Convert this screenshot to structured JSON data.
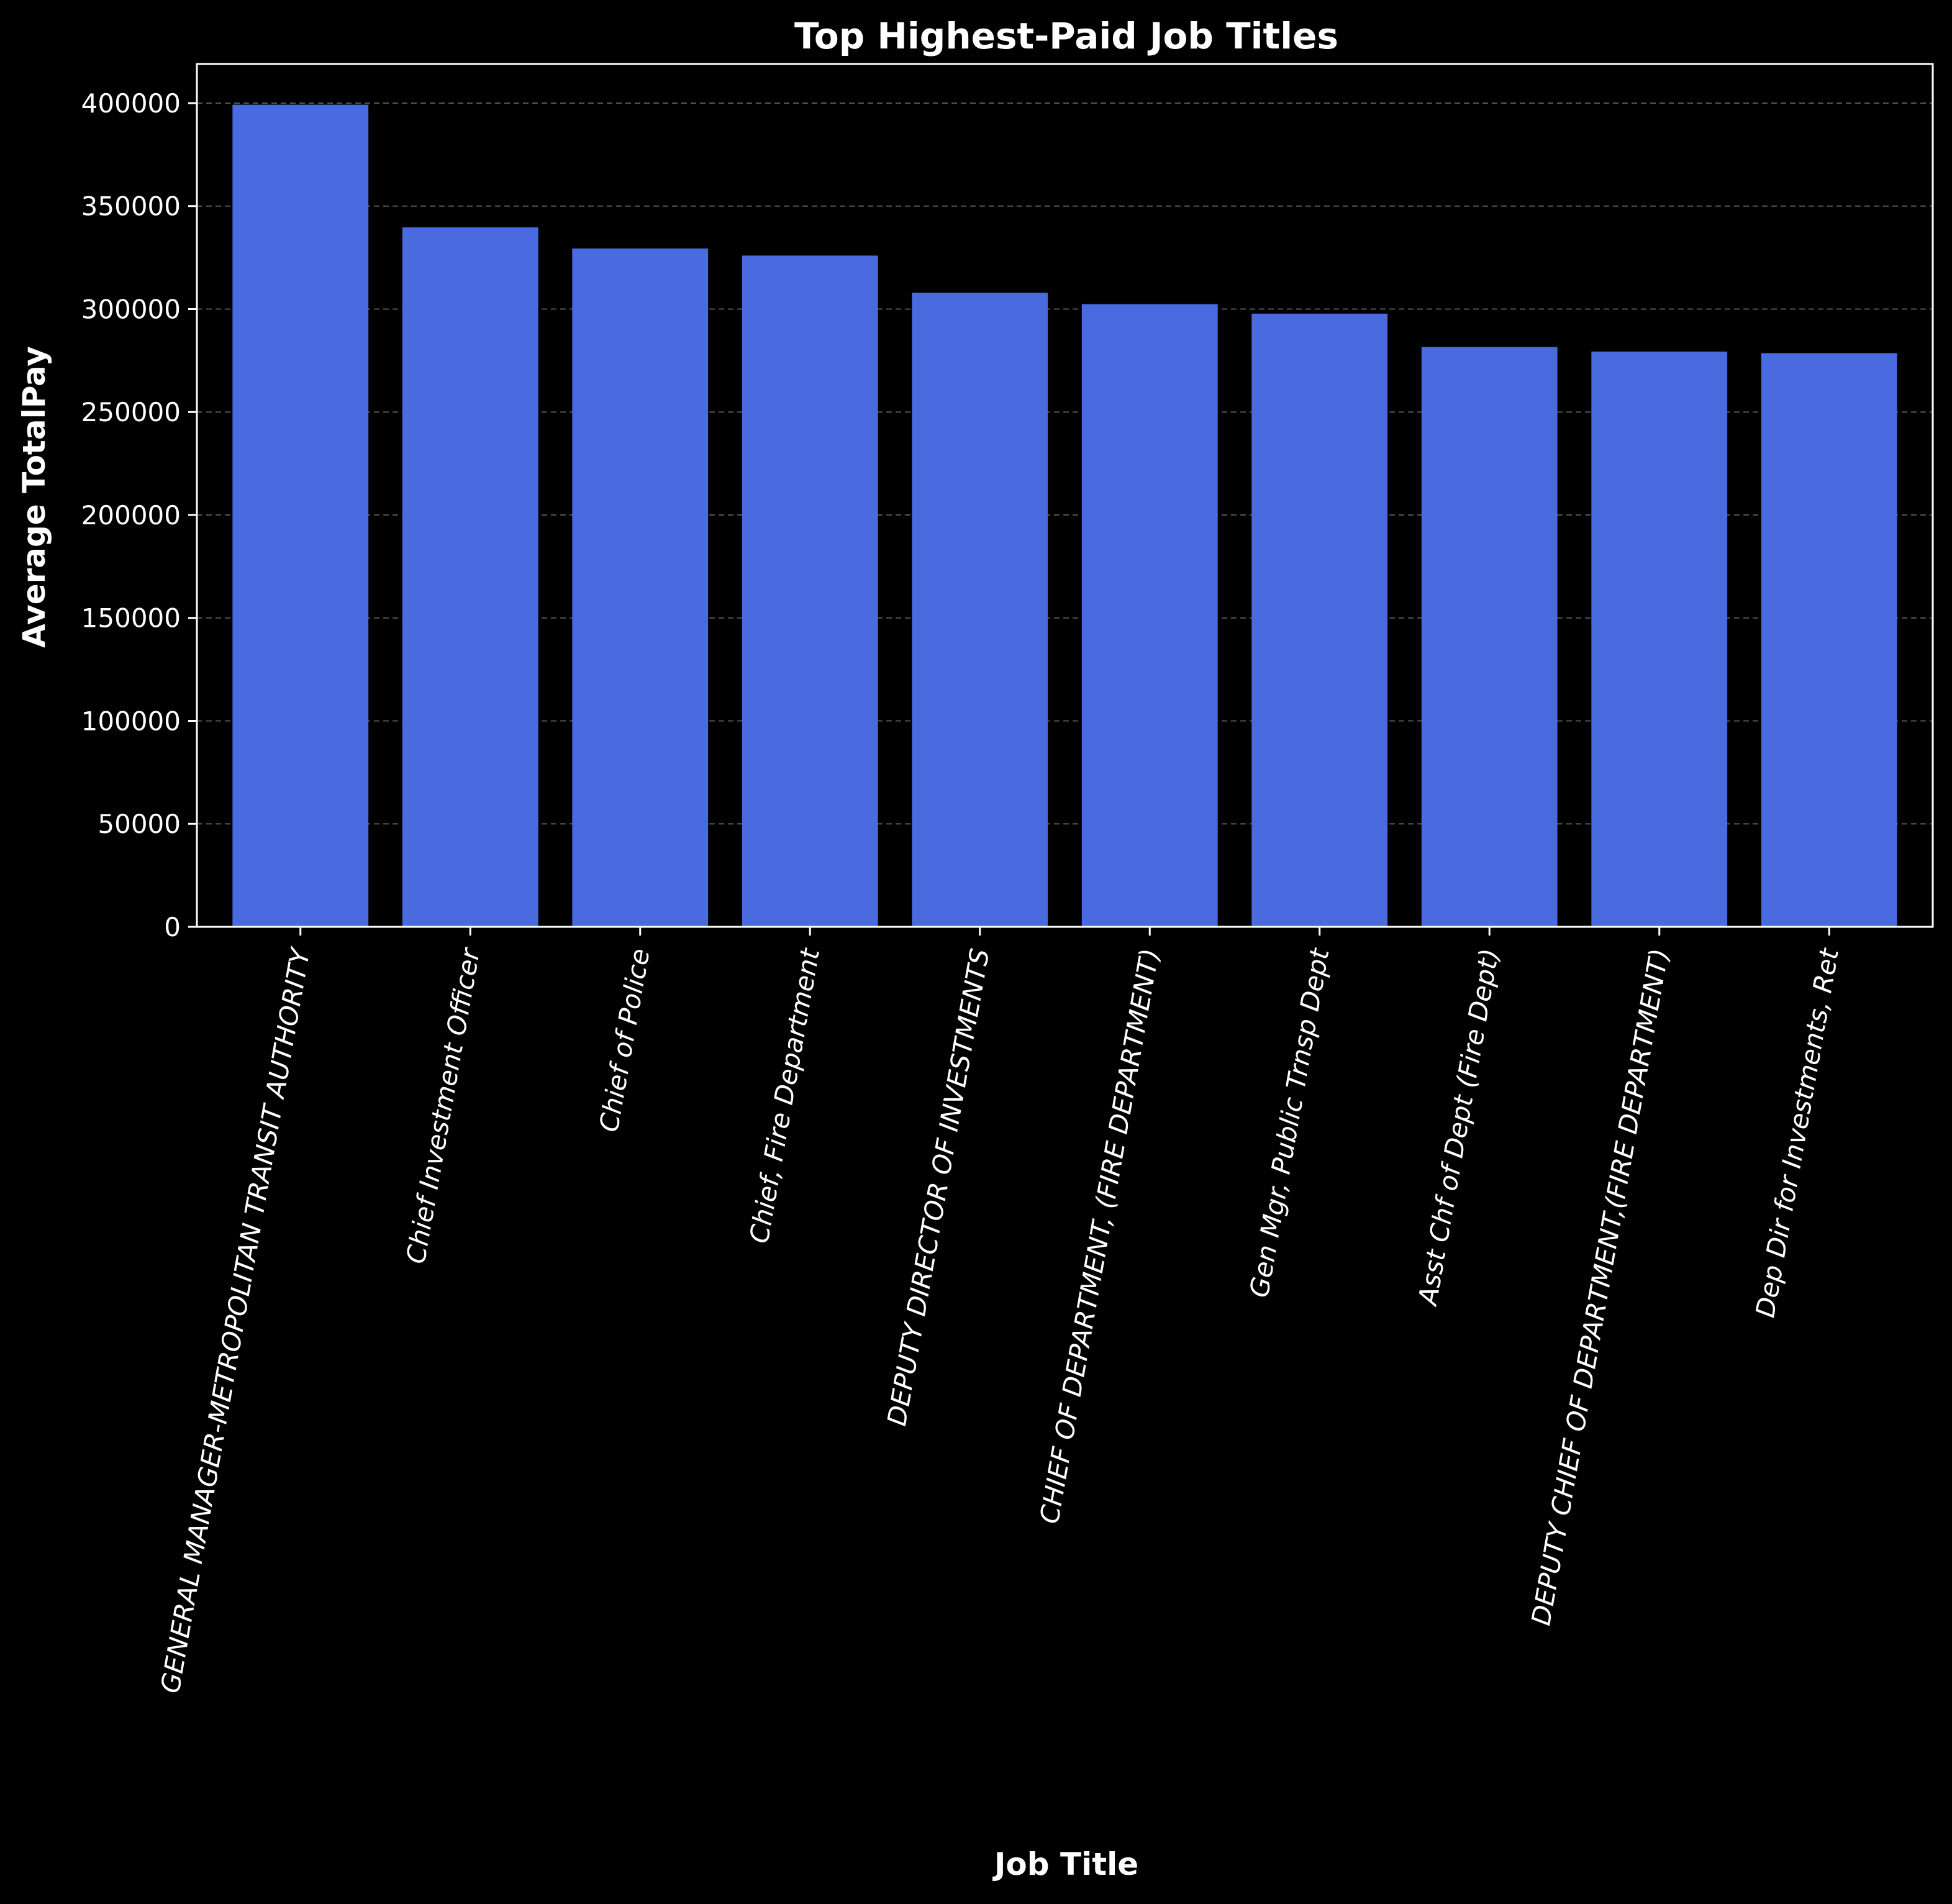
{
  "chart_data": {
    "type": "bar",
    "title": "Top Highest-Paid Job Titles",
    "xlabel": "Job Title",
    "ylabel": "Average TotalPay",
    "categories": [
      "GENERAL MANAGER-METROPOLITAN TRANSIT AUTHORITY",
      "Chief Investment Officer",
      "Chief of Police",
      "Chief, Fire Department",
      "DEPUTY DIRECTOR OF INVESTMENTS",
      "CHIEF OF DEPARTMENT, (FIRE DEPARTMENT)",
      "Gen Mgr, Public Trnsp Dept",
      "Asst Chf of Dept (Fire Dept)",
      "DEPUTY CHIEF OF DEPARTMENT,(FIRE DEPARTMENT)",
      "Dep Dir for Investments, Ret"
    ],
    "values": [
      399211,
      339654,
      329390,
      325971,
      307899,
      302377,
      297770,
      281570,
      279359,
      278592
    ],
    "yticks": [
      0,
      50000,
      100000,
      150000,
      200000,
      250000,
      300000,
      350000,
      400000
    ],
    "ylim": [
      0,
      419000
    ],
    "grid": "y, dashed",
    "colors": {
      "bar": "#4a6ae0",
      "background": "#000000",
      "text": "#ffffff",
      "grid": "#555555"
    }
  }
}
